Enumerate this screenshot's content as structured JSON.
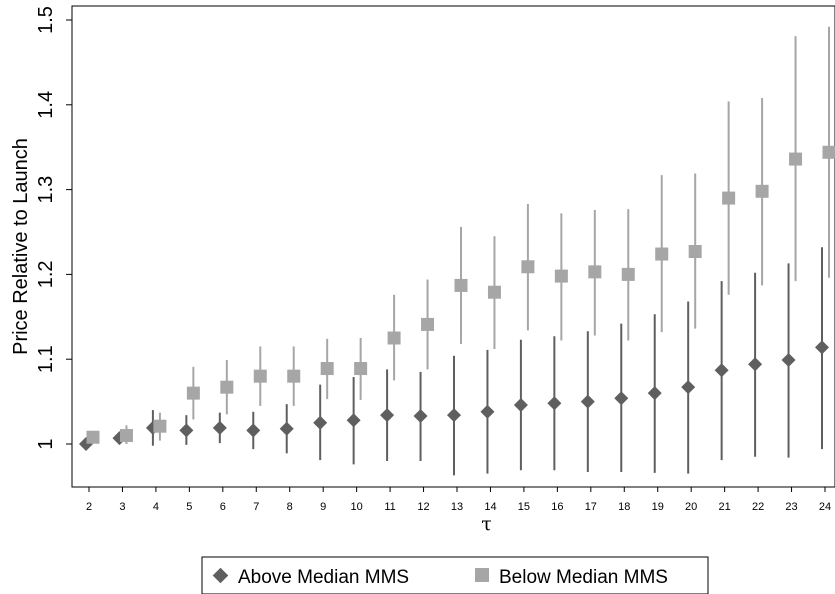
{
  "chart_data": {
    "type": "scatter",
    "xlabel": "τ",
    "ylabel": "Price Relative to Launch",
    "x": [
      2,
      3,
      4,
      5,
      6,
      7,
      8,
      9,
      10,
      11,
      12,
      13,
      14,
      15,
      16,
      17,
      18,
      19,
      20,
      21,
      22,
      23,
      24
    ],
    "xlim": [
      1.5,
      24.2
    ],
    "ylim": [
      1.0,
      1.5
    ],
    "y_ticks": [
      1,
      1.1,
      1.2,
      1.3,
      1.4,
      1.5
    ],
    "y_tick_labels": [
      "1",
      "1.1",
      "1.2",
      "1.3",
      "1.4",
      "1.5"
    ],
    "x_tick_labels": [
      "2",
      "3",
      "4",
      "5",
      "6",
      "7",
      "8",
      "9",
      "10",
      "11",
      "12",
      "13",
      "14",
      "15",
      "16",
      "17",
      "18",
      "19",
      "20",
      "21",
      "22",
      "23",
      "24"
    ],
    "grid": false,
    "legend_position": "bottom",
    "series": [
      {
        "name": "Above Median MMS",
        "marker": "diamond",
        "color": "#5f5f5f",
        "values": [
          1.0,
          1.007,
          1.019,
          1.016,
          1.019,
          1.016,
          1.018,
          1.025,
          1.028,
          1.034,
          1.033,
          1.034,
          1.038,
          1.046,
          1.048,
          1.05,
          1.054,
          1.06,
          1.067,
          1.087,
          1.094,
          1.099,
          1.114
        ],
        "lower": [
          1.0,
          1.0,
          0.998,
          0.999,
          1.001,
          0.994,
          0.989,
          0.981,
          0.976,
          0.98,
          0.98,
          0.963,
          0.965,
          0.969,
          0.969,
          0.967,
          0.967,
          0.966,
          0.965,
          0.981,
          0.985,
          0.984,
          0.994
        ],
        "upper": [
          1.0,
          1.014,
          1.04,
          1.034,
          1.037,
          1.038,
          1.047,
          1.07,
          1.079,
          1.088,
          1.085,
          1.104,
          1.111,
          1.123,
          1.127,
          1.133,
          1.142,
          1.153,
          1.168,
          1.192,
          1.202,
          1.213,
          1.232
        ]
      },
      {
        "name": "Below Median MMS",
        "marker": "square",
        "color": "#a6a6a6",
        "values": [
          1.008,
          1.01,
          1.021,
          1.06,
          1.067,
          1.08,
          1.08,
          1.089,
          1.089,
          1.125,
          1.141,
          1.187,
          1.179,
          1.209,
          1.198,
          1.203,
          1.2,
          1.224,
          1.227,
          1.29,
          1.298,
          1.336,
          1.344
        ],
        "lower": [
          1.003,
          1.0,
          1.004,
          1.029,
          1.035,
          1.045,
          1.045,
          1.053,
          1.052,
          1.075,
          1.088,
          1.118,
          1.112,
          1.134,
          1.122,
          1.128,
          1.122,
          1.132,
          1.136,
          1.176,
          1.187,
          1.192,
          1.196
        ],
        "upper": [
          1.013,
          1.022,
          1.037,
          1.091,
          1.099,
          1.115,
          1.115,
          1.124,
          1.125,
          1.176,
          1.194,
          1.256,
          1.245,
          1.283,
          1.272,
          1.276,
          1.277,
          1.317,
          1.319,
          1.404,
          1.408,
          1.481,
          1.492
        ]
      }
    ]
  }
}
